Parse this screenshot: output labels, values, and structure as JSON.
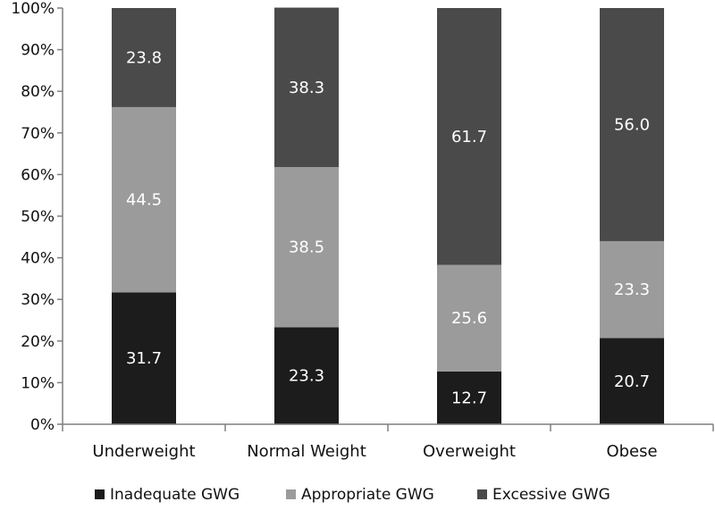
{
  "chart_data": {
    "type": "bar",
    "stacked": true,
    "categories": [
      "Underweight",
      "Normal Weight",
      "Overweight",
      "Obese"
    ],
    "series": [
      {
        "name": "Inadequate GWG",
        "values": [
          31.7,
          23.3,
          12.7,
          20.7
        ],
        "color": "#1c1c1c"
      },
      {
        "name": "Appropriate GWG",
        "values": [
          44.5,
          38.5,
          25.6,
          23.3
        ],
        "color": "#9b9b9b"
      },
      {
        "name": "Excessive GWG",
        "values": [
          23.8,
          38.3,
          61.7,
          56.0
        ],
        "color": "#4a4a4a"
      }
    ],
    "yticks": [
      "0%",
      "10%",
      "20%",
      "30%",
      "40%",
      "50%",
      "60%",
      "70%",
      "80%",
      "90%",
      "100%"
    ],
    "ylim": [
      0,
      100
    ],
    "grid": false,
    "legend_position": "bottom"
  }
}
